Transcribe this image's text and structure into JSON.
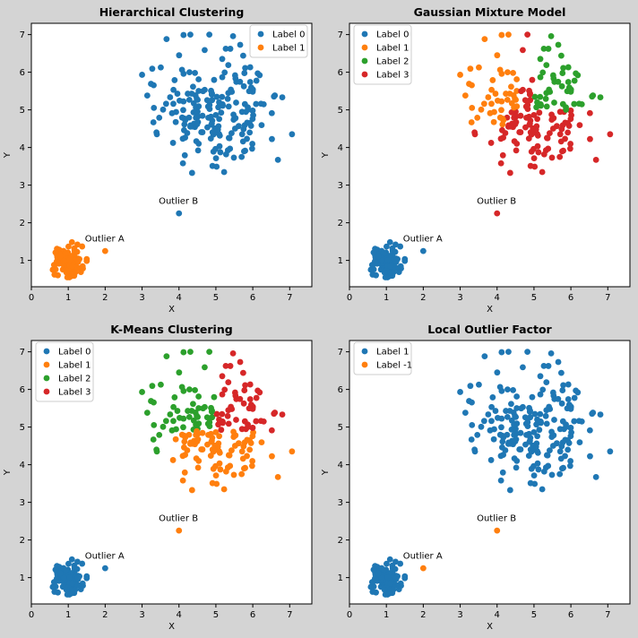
{
  "figure": {
    "background": "#d4d4d4"
  },
  "palette": {
    "c0": "#1f77b4",
    "c1": "#ff7f0e",
    "c2": "#2ca02c",
    "c3": "#d62728"
  },
  "chart_data": [
    {
      "type": "scatter",
      "title": "Hierarchical Clustering",
      "xlabel": "X",
      "ylabel": "Y",
      "xlim": [
        0,
        7.6
      ],
      "ylim": [
        0.3,
        7.3
      ],
      "xticks": [
        0,
        1,
        2,
        3,
        4,
        5,
        6,
        7
      ],
      "yticks": [
        1,
        2,
        3,
        4,
        5,
        6,
        7
      ],
      "grid": false,
      "legend_position": "upper right",
      "legend": [
        {
          "label": "Label 0",
          "color": "#1f77b4"
        },
        {
          "label": "Label 1",
          "color": "#ff7f0e"
        }
      ],
      "clusters": [
        {
          "label": "Label 0",
          "color": "#1f77b4",
          "region": "large"
        },
        {
          "label": "Label 1",
          "color": "#ff7f0e",
          "region": "small"
        }
      ],
      "outliers": [
        {
          "name": "Outlier A",
          "x": 2.0,
          "y": 1.25,
          "label": "Label 1",
          "color": "#ff7f0e"
        },
        {
          "name": "Outlier B",
          "x": 4.0,
          "y": 2.25,
          "label": "Label 0",
          "color": "#1f77b4"
        }
      ],
      "annotations": [
        {
          "text": "Outlier A",
          "x": 1.45,
          "y": 1.5
        },
        {
          "text": "Outlier B",
          "x": 3.45,
          "y": 2.5
        }
      ]
    },
    {
      "type": "scatter",
      "title": "Gaussian Mixture Model",
      "xlabel": "X",
      "ylabel": "Y",
      "xlim": [
        0,
        7.6
      ],
      "ylim": [
        0.3,
        7.3
      ],
      "xticks": [
        0,
        1,
        2,
        3,
        4,
        5,
        6,
        7
      ],
      "yticks": [
        1,
        2,
        3,
        4,
        5,
        6,
        7
      ],
      "grid": false,
      "legend_position": "upper left",
      "legend": [
        {
          "label": "Label 0",
          "color": "#1f77b4"
        },
        {
          "label": "Label 1",
          "color": "#ff7f0e"
        },
        {
          "label": "Label 2",
          "color": "#2ca02c"
        },
        {
          "label": "Label 3",
          "color": "#d62728"
        }
      ],
      "clusters": [
        {
          "label": "Label 0",
          "color": "#1f77b4",
          "region": "small"
        },
        {
          "label": "Label 1",
          "color": "#ff7f0e",
          "region": "upper-left of large cluster"
        },
        {
          "label": "Label 2",
          "color": "#2ca02c",
          "region": "right of large cluster"
        },
        {
          "label": "Label 3",
          "color": "#d62728",
          "region": "lower center of large cluster"
        }
      ],
      "outliers": [
        {
          "name": "Outlier A",
          "x": 2.0,
          "y": 1.25,
          "label": "Label 0",
          "color": "#1f77b4"
        },
        {
          "name": "Outlier B",
          "x": 4.0,
          "y": 2.25,
          "label": "Label 3",
          "color": "#d62728"
        }
      ],
      "annotations": [
        {
          "text": "Outlier A",
          "x": 1.45,
          "y": 1.5
        },
        {
          "text": "Outlier B",
          "x": 3.45,
          "y": 2.5
        }
      ]
    },
    {
      "type": "scatter",
      "title": "K-Means Clustering",
      "xlabel": "X",
      "ylabel": "Y",
      "xlim": [
        0,
        7.6
      ],
      "ylim": [
        0.3,
        7.3
      ],
      "xticks": [
        0,
        1,
        2,
        3,
        4,
        5,
        6,
        7
      ],
      "yticks": [
        1,
        2,
        3,
        4,
        5,
        6,
        7
      ],
      "grid": false,
      "legend_position": "upper left",
      "legend": [
        {
          "label": "Label 0",
          "color": "#1f77b4"
        },
        {
          "label": "Label 1",
          "color": "#ff7f0e"
        },
        {
          "label": "Label 2",
          "color": "#2ca02c"
        },
        {
          "label": "Label 3",
          "color": "#d62728"
        }
      ],
      "clusters": [
        {
          "label": "Label 0",
          "color": "#1f77b4",
          "region": "small"
        },
        {
          "label": "Label 1",
          "color": "#ff7f0e",
          "region": "lower center of large cluster"
        },
        {
          "label": "Label 2",
          "color": "#2ca02c",
          "region": "upper-left of large cluster"
        },
        {
          "label": "Label 3",
          "color": "#d62728",
          "region": "right of large cluster"
        }
      ],
      "outliers": [
        {
          "name": "Outlier A",
          "x": 2.0,
          "y": 1.25,
          "label": "Label 0",
          "color": "#1f77b4"
        },
        {
          "name": "Outlier B",
          "x": 4.0,
          "y": 2.25,
          "label": "Label 1",
          "color": "#ff7f0e"
        }
      ],
      "annotations": [
        {
          "text": "Outlier A",
          "x": 1.45,
          "y": 1.5
        },
        {
          "text": "Outlier B",
          "x": 3.45,
          "y": 2.5
        }
      ]
    },
    {
      "type": "scatter",
      "title": "Local Outlier Factor",
      "xlabel": "X",
      "ylabel": "Y",
      "xlim": [
        0,
        7.6
      ],
      "ylim": [
        0.3,
        7.3
      ],
      "xticks": [
        0,
        1,
        2,
        3,
        4,
        5,
        6,
        7
      ],
      "yticks": [
        1,
        2,
        3,
        4,
        5,
        6,
        7
      ],
      "grid": false,
      "legend_position": "upper left",
      "legend": [
        {
          "label": "Label 1",
          "color": "#1f77b4"
        },
        {
          "label": "Label -1",
          "color": "#ff7f0e"
        }
      ],
      "clusters": [
        {
          "label": "Label 1",
          "color": "#1f77b4",
          "region": "all inliers"
        }
      ],
      "outliers": [
        {
          "name": "Outlier A",
          "x": 2.0,
          "y": 1.25,
          "label": "Label -1",
          "color": "#ff7f0e"
        },
        {
          "name": "Outlier B",
          "x": 4.0,
          "y": 2.25,
          "label": "Label -1",
          "color": "#ff7f0e"
        }
      ],
      "annotations": [
        {
          "text": "Outlier A",
          "x": 1.45,
          "y": 1.5
        },
        {
          "text": "Outlier B",
          "x": 3.45,
          "y": 2.5
        }
      ]
    }
  ],
  "dataset": {
    "small_cluster": {
      "center": [
        1.0,
        1.0
      ],
      "sd": 0.2,
      "n": 100
    },
    "large_cluster": {
      "center": [
        5.0,
        5.0
      ],
      "sd": 0.8,
      "n": 200
    },
    "outliers": [
      [
        2.0,
        1.25
      ],
      [
        4.0,
        2.25
      ]
    ]
  }
}
